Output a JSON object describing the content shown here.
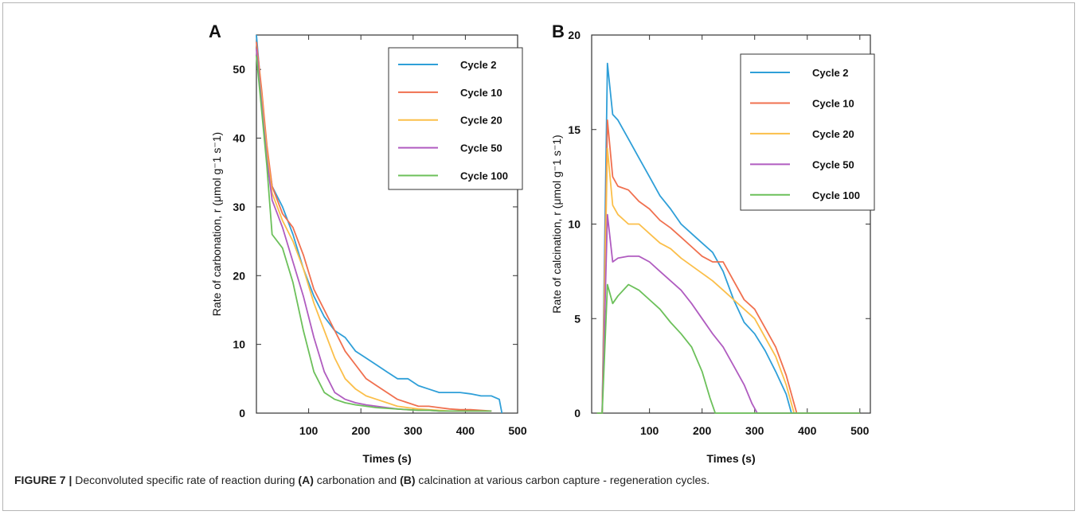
{
  "caption": {
    "label": "FIGURE 7 |",
    "p1": " Deconvoluted specific rate of reaction during ",
    "a": "(A)",
    "p2": " carbonation and ",
    "b": "(B)",
    "p3": " calcination at various carbon capture - regeneration cycles."
  },
  "colors": {
    "Cycle 2": "#2f9fd8",
    "Cycle 10": "#f0704f",
    "Cycle 20": "#fbbf4a",
    "Cycle 50": "#b05cc0",
    "Cycle 100": "#6cc05a"
  },
  "chart_data": [
    {
      "panel": "A",
      "type": "line",
      "xlabel": "Times (s)",
      "ylabel": "Rate of carbonation,  r (μmol g⁻1 s⁻1)",
      "xticks": [
        100,
        200,
        300,
        400,
        500
      ],
      "yticks": [
        0,
        10,
        20,
        30,
        40,
        50
      ],
      "xlim": [
        0,
        500
      ],
      "ylim": [
        0,
        55
      ],
      "legend_position": "top-right",
      "series": [
        {
          "name": "Cycle 2",
          "x": [
            0,
            10,
            20,
            30,
            50,
            70,
            90,
            110,
            130,
            150,
            170,
            190,
            210,
            230,
            250,
            270,
            290,
            310,
            330,
            350,
            370,
            390,
            410,
            430,
            450,
            465,
            470
          ],
          "y": [
            55,
            46,
            38,
            33,
            30,
            26,
            21,
            17,
            14,
            12,
            11,
            9,
            8,
            7,
            6,
            5,
            5,
            4,
            3.5,
            3,
            3,
            3,
            2.8,
            2.5,
            2.5,
            2,
            0
          ]
        },
        {
          "name": "Cycle 10",
          "x": [
            0,
            10,
            20,
            30,
            50,
            70,
            90,
            110,
            130,
            150,
            170,
            190,
            210,
            230,
            250,
            270,
            290,
            310,
            330,
            350,
            370,
            390,
            410,
            430,
            450
          ],
          "y": [
            54,
            47,
            39,
            33,
            29,
            27,
            23,
            18,
            15,
            12,
            9,
            7,
            5,
            4,
            3,
            2,
            1.5,
            1,
            1,
            0.8,
            0.6,
            0.5,
            0.5,
            0.4,
            0.3
          ]
        },
        {
          "name": "Cycle 20",
          "x": [
            0,
            10,
            20,
            30,
            50,
            70,
            90,
            110,
            130,
            150,
            170,
            190,
            210,
            230,
            250,
            270,
            290,
            310,
            330,
            350,
            370,
            390,
            410,
            430,
            450
          ],
          "y": [
            53,
            46,
            38,
            32,
            28,
            25,
            21,
            16,
            12,
            8,
            5,
            3.5,
            2.5,
            2,
            1.5,
            1,
            0.8,
            0.6,
            0.5,
            0.4,
            0.3,
            0.3,
            0.3,
            0.3,
            0.3
          ]
        },
        {
          "name": "Cycle 50",
          "x": [
            0,
            10,
            20,
            30,
            50,
            70,
            90,
            110,
            130,
            150,
            170,
            190,
            210,
            230,
            250,
            270,
            290,
            310,
            330,
            350,
            370,
            390,
            410,
            430,
            450
          ],
          "y": [
            53,
            45,
            37,
            31,
            27,
            22,
            17,
            11,
            6,
            3,
            2,
            1.5,
            1.2,
            1,
            0.8,
            0.6,
            0.5,
            0.4,
            0.4,
            0.3,
            0.3,
            0.3,
            0.3,
            0.3,
            0.3
          ]
        },
        {
          "name": "Cycle 100",
          "x": [
            0,
            10,
            20,
            30,
            50,
            70,
            90,
            110,
            130,
            150,
            170,
            190,
            210,
            230,
            250,
            270,
            290,
            310,
            330,
            350,
            370,
            390,
            410,
            430,
            450
          ],
          "y": [
            52,
            44,
            36,
            26,
            24,
            19,
            12,
            6,
            3,
            2,
            1.5,
            1.2,
            1,
            0.8,
            0.7,
            0.6,
            0.5,
            0.4,
            0.4,
            0.3,
            0.3,
            0.3,
            0.3,
            0.3,
            0.3
          ]
        }
      ]
    },
    {
      "panel": "B",
      "type": "line",
      "xlabel": "Times (s)",
      "ylabel": "Rate of calcination,  r (μmol g⁻1 s⁻1)",
      "xticks": [
        100,
        200,
        300,
        400,
        500
      ],
      "yticks": [
        0,
        5,
        10,
        15,
        20
      ],
      "xlim": [
        -10,
        520
      ],
      "ylim": [
        0,
        20
      ],
      "legend_position": "top-right",
      "series": [
        {
          "name": "Cycle 2",
          "x": [
            0,
            10,
            20,
            30,
            40,
            60,
            80,
            100,
            120,
            140,
            160,
            180,
            200,
            220,
            240,
            260,
            280,
            300,
            320,
            340,
            360,
            370,
            380,
            500
          ],
          "y": [
            0,
            0,
            18.5,
            15.8,
            15.5,
            14.5,
            13.5,
            12.5,
            11.5,
            10.8,
            10,
            9.5,
            9,
            8.5,
            7.5,
            6,
            4.8,
            4.2,
            3.3,
            2.2,
            1,
            0,
            0,
            0
          ]
        },
        {
          "name": "Cycle 10",
          "x": [
            0,
            10,
            20,
            30,
            40,
            60,
            80,
            100,
            120,
            140,
            160,
            180,
            200,
            220,
            240,
            260,
            280,
            300,
            320,
            340,
            360,
            380,
            390,
            500
          ],
          "y": [
            0,
            0,
            15.5,
            12.5,
            12,
            11.8,
            11.2,
            10.8,
            10.2,
            9.8,
            9.3,
            8.8,
            8.3,
            8,
            8,
            7,
            6,
            5.5,
            4.5,
            3.5,
            2,
            0,
            0,
            0
          ]
        },
        {
          "name": "Cycle 20",
          "x": [
            0,
            10,
            20,
            30,
            40,
            60,
            80,
            100,
            120,
            140,
            160,
            180,
            200,
            220,
            240,
            260,
            280,
            300,
            320,
            340,
            360,
            375,
            390,
            500
          ],
          "y": [
            0,
            0,
            14,
            11,
            10.5,
            10,
            10,
            9.5,
            9,
            8.7,
            8.2,
            7.8,
            7.4,
            7,
            6.5,
            6,
            5.5,
            5,
            4,
            3,
            1.5,
            0,
            0,
            0
          ]
        },
        {
          "name": "Cycle 50",
          "x": [
            0,
            10,
            20,
            30,
            40,
            60,
            80,
            100,
            120,
            140,
            160,
            180,
            200,
            220,
            240,
            260,
            280,
            295,
            305,
            500
          ],
          "y": [
            0,
            0,
            10.5,
            8,
            8.2,
            8.3,
            8.3,
            8,
            7.5,
            7,
            6.5,
            5.8,
            5,
            4.2,
            3.5,
            2.5,
            1.5,
            0.5,
            0,
            0
          ]
        },
        {
          "name": "Cycle 100",
          "x": [
            0,
            10,
            20,
            30,
            40,
            60,
            80,
            100,
            120,
            140,
            160,
            180,
            200,
            215,
            225,
            500
          ],
          "y": [
            0,
            0,
            6.8,
            5.8,
            6.2,
            6.8,
            6.5,
            6,
            5.5,
            4.8,
            4.2,
            3.5,
            2.2,
            0.8,
            0,
            0
          ]
        }
      ]
    }
  ]
}
